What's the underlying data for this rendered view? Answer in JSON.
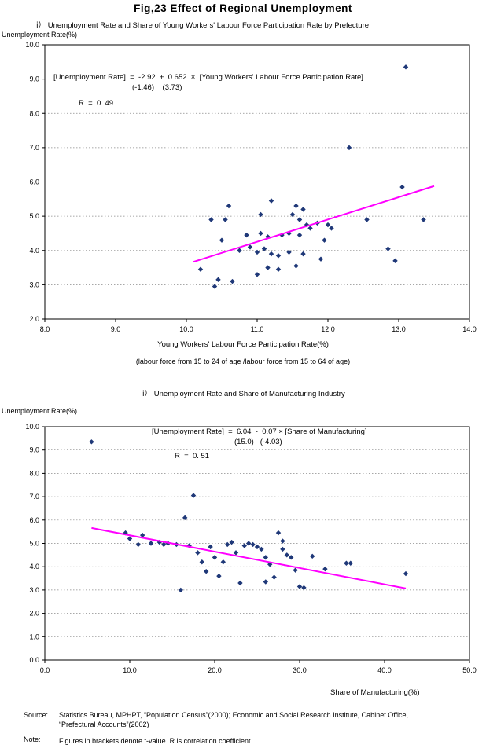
{
  "figure": {
    "title": "Fig,23  Effect of Regional Unemployment",
    "source_label": "Source:",
    "source_line1": "Statistics Bureau, MPHPT, “Population Census”(2000); Economic and Social Research Institute, Cabinet Office,",
    "source_line2": "“Prefectural Accounts”(2002)",
    "note_label": "Note:",
    "note_text": "Figures in brackets denote t-value. R is correlation coefficient."
  },
  "colors": {
    "point": "#1f3878",
    "line": "#ff00ff",
    "grid": "#8a8a8a",
    "axis": "#000000"
  },
  "chart_data": [
    {
      "type": "scatter",
      "section_label": "ⅰ）  Unemployment Rate and Share of Young Workers' Labour Force Participation Rate by Prefecture",
      "ylabel": "Unemployment Rate(%)",
      "xlabel": "Young Workers' Labour Force Participation Rate(%)",
      "xlabel_note": "(labour force from 15 to 24 of age /labour force from 15 to 64 of age)",
      "equation": "[Unemployment Rate]  =  -2.92  +  0.652  ×  [Young Workers' Labour Force Participation Rate]",
      "t_values": "(-1.46)    (3.73)",
      "r_label": "R  =  0. 49",
      "xlim": [
        8,
        14
      ],
      "ylim": [
        2,
        10
      ],
      "xticks": [
        {
          "v": 8,
          "label": "8.0"
        },
        {
          "v": 9,
          "label": "9.0"
        },
        {
          "v": 10,
          "label": "10.0"
        },
        {
          "v": 11,
          "label": "11.0"
        },
        {
          "v": 12,
          "label": "12.0"
        },
        {
          "v": 13,
          "label": "13.0"
        },
        {
          "v": 14,
          "label": "14.0"
        }
      ],
      "yticks": [
        {
          "v": 2,
          "label": "2.0"
        },
        {
          "v": 3,
          "label": "3.0"
        },
        {
          "v": 4,
          "label": "4.0"
        },
        {
          "v": 5,
          "label": "5.0"
        },
        {
          "v": 6,
          "label": "6.0"
        },
        {
          "v": 7,
          "label": "7.0"
        },
        {
          "v": 8,
          "label": "8.0"
        },
        {
          "v": 9,
          "label": "9.0"
        },
        {
          "v": 10,
          "label": "10.0"
        }
      ],
      "regression": {
        "x1": 10.1,
        "y1": 3.67,
        "x2": 13.5,
        "y2": 5.88
      },
      "points": [
        [
          13.1,
          9.35
        ],
        [
          12.3,
          7.0
        ],
        [
          13.05,
          5.85
        ],
        [
          13.35,
          4.9
        ],
        [
          12.55,
          4.9
        ],
        [
          11.2,
          5.45
        ],
        [
          11.55,
          5.3
        ],
        [
          10.6,
          5.3
        ],
        [
          10.55,
          4.9
        ],
        [
          10.35,
          4.9
        ],
        [
          11.05,
          5.05
        ],
        [
          11.5,
          5.05
        ],
        [
          11.65,
          5.2
        ],
        [
          11.6,
          4.9
        ],
        [
          11.7,
          4.75
        ],
        [
          11.75,
          4.65
        ],
        [
          11.85,
          4.8
        ],
        [
          12.0,
          4.75
        ],
        [
          12.05,
          4.65
        ],
        [
          11.45,
          4.5
        ],
        [
          11.35,
          4.45
        ],
        [
          11.15,
          4.4
        ],
        [
          10.85,
          4.45
        ],
        [
          11.6,
          4.45
        ],
        [
          11.95,
          4.3
        ],
        [
          12.85,
          4.05
        ],
        [
          12.95,
          3.7
        ],
        [
          10.75,
          4.0
        ],
        [
          10.9,
          4.1
        ],
        [
          11.0,
          3.95
        ],
        [
          11.1,
          4.05
        ],
        [
          11.2,
          3.9
        ],
        [
          11.3,
          3.85
        ],
        [
          11.45,
          3.95
        ],
        [
          11.65,
          3.9
        ],
        [
          11.9,
          3.75
        ],
        [
          11.55,
          3.55
        ],
        [
          11.15,
          3.5
        ],
        [
          11.3,
          3.45
        ],
        [
          11.0,
          3.3
        ],
        [
          10.2,
          3.45
        ],
        [
          10.45,
          3.15
        ],
        [
          10.65,
          3.1
        ],
        [
          10.4,
          2.95
        ],
        [
          11.05,
          4.5
        ],
        [
          10.5,
          4.3
        ]
      ]
    },
    {
      "type": "scatter",
      "section_label": "ⅱ）  Unemployment Rate and Share of Manufacturing Industry",
      "ylabel": "Unemployment Rate(%)",
      "xlabel": "Share of Manufacturing(%)",
      "xlabel_note": "",
      "equation": "[Unemployment Rate]  =  6.04  -  0.07 × [Share of Manufacturing]",
      "t_values": "(15.0)   (-4.03)",
      "r_label": "R  =  0. 51",
      "xlim": [
        0,
        50
      ],
      "ylim": [
        0,
        10
      ],
      "xticks": [
        {
          "v": 0,
          "label": "0.0"
        },
        {
          "v": 10,
          "label": "10.0"
        },
        {
          "v": 20,
          "label": "20.0"
        },
        {
          "v": 30,
          "label": "30.0"
        },
        {
          "v": 40,
          "label": "40.0"
        },
        {
          "v": 50,
          "label": "50.0"
        }
      ],
      "yticks": [
        {
          "v": 0,
          "label": "0.0"
        },
        {
          "v": 1,
          "label": "1.0"
        },
        {
          "v": 2,
          "label": "2.0"
        },
        {
          "v": 3,
          "label": "3.0"
        },
        {
          "v": 4,
          "label": "4.0"
        },
        {
          "v": 5,
          "label": "5.0"
        },
        {
          "v": 6,
          "label": "6.0"
        },
        {
          "v": 7,
          "label": "7.0"
        },
        {
          "v": 8,
          "label": "8.0"
        },
        {
          "v": 9,
          "label": "9.0"
        },
        {
          "v": 10,
          "label": "10.0"
        }
      ],
      "regression": {
        "x1": 5.5,
        "y1": 5.66,
        "x2": 42.5,
        "y2": 3.07
      },
      "points": [
        [
          5.5,
          9.35
        ],
        [
          17.5,
          7.05
        ],
        [
          16.5,
          6.1
        ],
        [
          9.5,
          5.45
        ],
        [
          10.0,
          5.2
        ],
        [
          11.0,
          4.95
        ],
        [
          11.5,
          5.35
        ],
        [
          12.5,
          5.0
        ],
        [
          13.5,
          5.05
        ],
        [
          14.0,
          4.95
        ],
        [
          14.5,
          5.0
        ],
        [
          15.5,
          4.95
        ],
        [
          16.0,
          3.0
        ],
        [
          17.0,
          4.9
        ],
        [
          18.0,
          4.6
        ],
        [
          18.5,
          4.2
        ],
        [
          19.0,
          3.8
        ],
        [
          19.5,
          4.85
        ],
        [
          20.0,
          4.4
        ],
        [
          20.5,
          3.6
        ],
        [
          21.0,
          4.2
        ],
        [
          21.5,
          4.95
        ],
        [
          22.0,
          5.05
        ],
        [
          22.5,
          4.6
        ],
        [
          23.0,
          3.3
        ],
        [
          23.5,
          4.9
        ],
        [
          24.0,
          5.0
        ],
        [
          24.5,
          4.95
        ],
        [
          25.0,
          4.85
        ],
        [
          25.5,
          4.75
        ],
        [
          26.0,
          4.4
        ],
        [
          26.0,
          3.35
        ],
        [
          26.5,
          4.1
        ],
        [
          27.0,
          3.55
        ],
        [
          27.5,
          5.45
        ],
        [
          28.0,
          5.1
        ],
        [
          28.0,
          4.75
        ],
        [
          28.5,
          4.5
        ],
        [
          29.0,
          4.4
        ],
        [
          29.5,
          3.85
        ],
        [
          30.0,
          3.15
        ],
        [
          30.5,
          3.1
        ],
        [
          31.5,
          4.45
        ],
        [
          33.0,
          3.9
        ],
        [
          35.5,
          4.15
        ],
        [
          36.0,
          4.15
        ],
        [
          42.5,
          3.7
        ]
      ]
    }
  ]
}
